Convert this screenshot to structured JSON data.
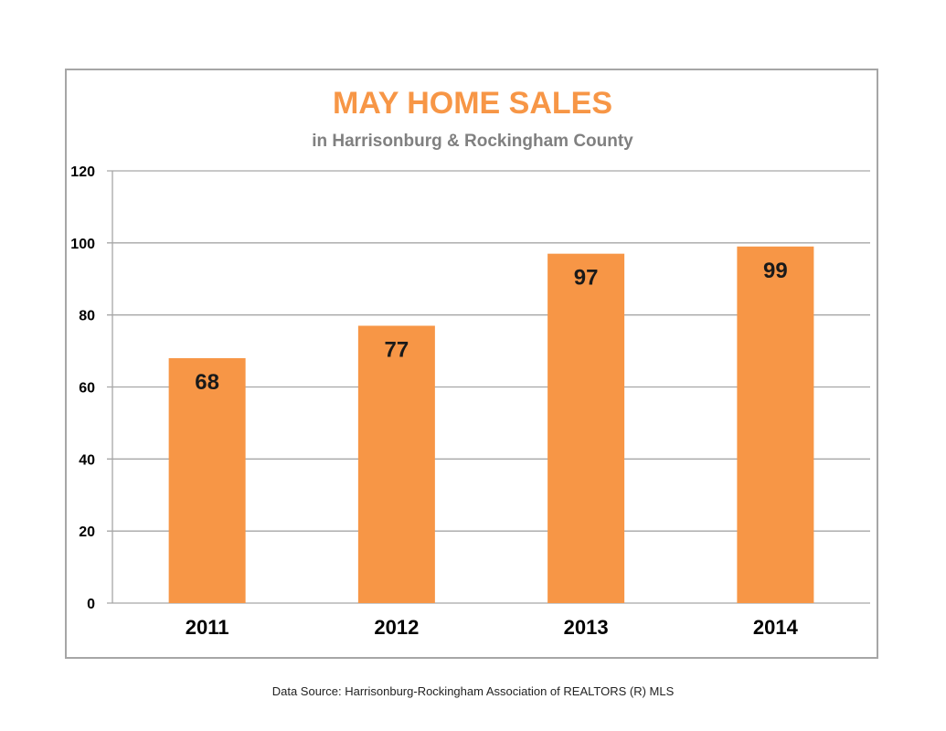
{
  "chart_data": {
    "type": "bar",
    "title": "MAY HOME SALES",
    "subtitle": "in Harrisonburg & Rockingham County",
    "categories": [
      "2011",
      "2012",
      "2013",
      "2014"
    ],
    "values": [
      68,
      77,
      97,
      99
    ],
    "data_labels": [
      "68",
      "77",
      "97",
      "99"
    ],
    "ylim": [
      0,
      120
    ],
    "yticks": [
      0,
      20,
      40,
      60,
      80,
      100,
      120
    ],
    "grid": true,
    "legend": "none",
    "colors": {
      "bar": "#f79646",
      "title": "#f79646",
      "subtitle": "#808080",
      "grid": "#a6a6a6"
    }
  },
  "footnote": "Data Source: Harrisonburg-Rockingham Association of REALTORS (R) MLS"
}
